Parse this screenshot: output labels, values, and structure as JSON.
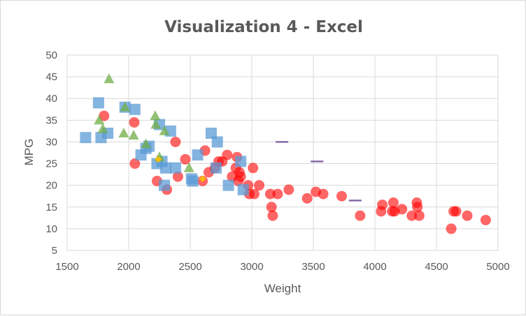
{
  "chart_data": {
    "type": "scatter",
    "title": "Visualization 4 - Excel",
    "xlabel": "Weight",
    "ylabel": "MPG",
    "xlim": [
      1500,
      5000
    ],
    "ylim": [
      5,
      50
    ],
    "xticks": [
      1500,
      2000,
      2500,
      3000,
      3500,
      4000,
      4500,
      5000
    ],
    "yticks": [
      5,
      10,
      15,
      20,
      25,
      30,
      35,
      40,
      45,
      50
    ],
    "grid": true,
    "legend": "none",
    "series": [
      {
        "marker": "circle",
        "color": "#ff0000",
        "points": [
          [
            1800,
            36
          ],
          [
            2045,
            34.5
          ],
          [
            2050,
            25
          ],
          [
            2230,
            21
          ],
          [
            2310,
            19
          ],
          [
            2380,
            30
          ],
          [
            2400,
            22
          ],
          [
            2460,
            26
          ],
          [
            2600,
            21
          ],
          [
            2620,
            28
          ],
          [
            2650,
            23
          ],
          [
            2700,
            24
          ],
          [
            2730,
            25.5
          ],
          [
            2760,
            25.5
          ],
          [
            2800,
            27
          ],
          [
            2840,
            22
          ],
          [
            2870,
            24
          ],
          [
            2880,
            26.5
          ],
          [
            2890,
            21
          ],
          [
            2900,
            23
          ],
          [
            2910,
            22
          ],
          [
            2970,
            20
          ],
          [
            2980,
            18
          ],
          [
            3010,
            24
          ],
          [
            3020,
            18
          ],
          [
            3060,
            20
          ],
          [
            3150,
            18
          ],
          [
            3160,
            15
          ],
          [
            3170,
            13
          ],
          [
            3210,
            18
          ],
          [
            3300,
            19
          ],
          [
            3450,
            17
          ],
          [
            3520,
            18.5
          ],
          [
            3580,
            18
          ],
          [
            3730,
            17.5
          ],
          [
            3880,
            13
          ],
          [
            4050,
            14
          ],
          [
            4060,
            15.5
          ],
          [
            4140,
            14
          ],
          [
            4150,
            16
          ],
          [
            4160,
            14
          ],
          [
            4220,
            14.5
          ],
          [
            4300,
            13
          ],
          [
            4340,
            16
          ],
          [
            4345,
            15
          ],
          [
            4360,
            13
          ],
          [
            4620,
            10
          ],
          [
            4640,
            14
          ],
          [
            4660,
            14
          ],
          [
            4750,
            13
          ],
          [
            4900,
            12
          ]
        ]
      },
      {
        "marker": "square",
        "color": "#5b9bd5",
        "points": [
          [
            1650,
            31
          ],
          [
            1755,
            39
          ],
          [
            1775,
            31
          ],
          [
            1830,
            32
          ],
          [
            1970,
            38
          ],
          [
            2050,
            37.5
          ],
          [
            2100,
            27
          ],
          [
            2140,
            28.5
          ],
          [
            2165,
            29
          ],
          [
            2230,
            25
          ],
          [
            2250,
            34
          ],
          [
            2270,
            25.5
          ],
          [
            2290,
            20
          ],
          [
            2300,
            24
          ],
          [
            2340,
            32.5
          ],
          [
            2380,
            24
          ],
          [
            2510,
            21.5
          ],
          [
            2520,
            21
          ],
          [
            2560,
            27
          ],
          [
            2670,
            32
          ],
          [
            2710,
            24
          ],
          [
            2720,
            30
          ],
          [
            2810,
            20
          ],
          [
            2910,
            25.5
          ],
          [
            2930,
            19
          ]
        ]
      },
      {
        "marker": "triangle",
        "color": "#70ad47",
        "points": [
          [
            1760,
            35
          ],
          [
            1790,
            33
          ],
          [
            1840,
            44.5
          ],
          [
            1960,
            32
          ],
          [
            1970,
            38
          ],
          [
            2040,
            31.5
          ],
          [
            2140,
            29.5
          ],
          [
            2215,
            36
          ],
          [
            2220,
            34
          ],
          [
            2250,
            26.5
          ],
          [
            2290,
            32.5
          ],
          [
            2490,
            24
          ]
        ]
      },
      {
        "marker": "diamond",
        "color": "#ffc000",
        "points": [
          [
            2240,
            26
          ],
          [
            2600,
            21.5
          ]
        ]
      },
      {
        "marker": "dash",
        "color": "#8064a2",
        "points": [
          [
            3245,
            30
          ],
          [
            3530,
            25.5
          ],
          [
            3840,
            16.5
          ]
        ]
      }
    ]
  }
}
